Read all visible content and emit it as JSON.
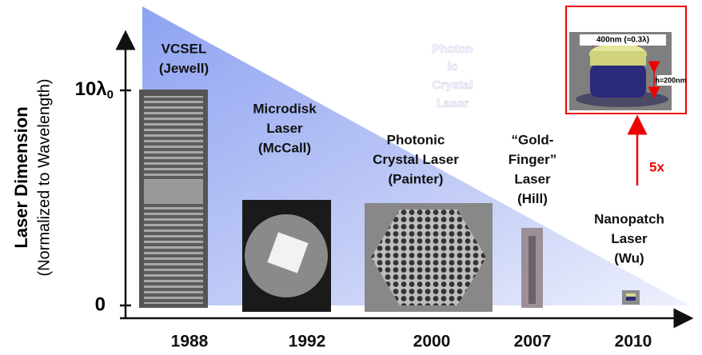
{
  "axis": {
    "title": "Laser Dimension",
    "subtitle": "(Normalized to Wavelength)",
    "tick_top": {
      "main": "10λ",
      "sub": "0"
    },
    "tick_bottom": "0"
  },
  "ghost_label": [
    "Photon",
    "ic",
    "Crystal",
    "Laser"
  ],
  "items": [
    {
      "year": "1988",
      "label": [
        "VCSEL",
        "(Jewell)"
      ]
    },
    {
      "year": "1992",
      "label": [
        "Microdisk",
        "Laser",
        "(McCall)"
      ]
    },
    {
      "year": "2000",
      "label": [
        "Photonic",
        "Crystal Laser",
        "(Painter)"
      ]
    },
    {
      "year": "2007",
      "label": [
        "“Gold-",
        "Finger”",
        "Laser",
        "(Hill)"
      ]
    },
    {
      "year": "2010",
      "label": [
        "Nanopatch",
        "Laser",
        "(Wu)"
      ]
    }
  ],
  "inset": {
    "width_label": "400nm (≈0.3λ)",
    "height_label": "h=200nm",
    "scale_label": "5x"
  }
}
